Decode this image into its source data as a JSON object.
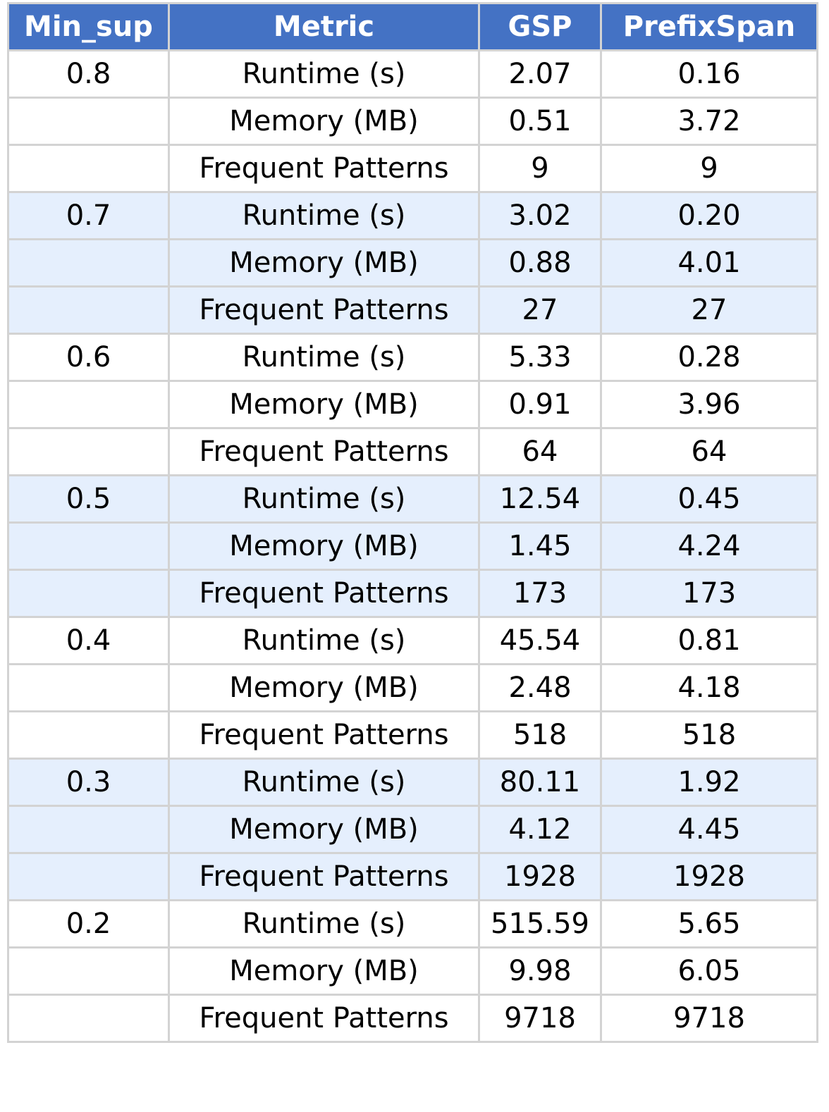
{
  "chart_data": {
    "type": "table",
    "columns": [
      "Min_sup",
      "Metric",
      "GSP",
      "PrefixSpan"
    ],
    "metrics": [
      "Runtime (s)",
      "Memory (MB)",
      "Frequent Patterns"
    ],
    "groups": [
      {
        "min_sup": "0.8",
        "rows": [
          {
            "metric": "Runtime (s)",
            "gsp": "2.07",
            "prefixspan": "0.16"
          },
          {
            "metric": "Memory (MB)",
            "gsp": "0.51",
            "prefixspan": "3.72"
          },
          {
            "metric": "Frequent Patterns",
            "gsp": "9",
            "prefixspan": "9"
          }
        ]
      },
      {
        "min_sup": "0.7",
        "rows": [
          {
            "metric": "Runtime (s)",
            "gsp": "3.02",
            "prefixspan": "0.20"
          },
          {
            "metric": "Memory (MB)",
            "gsp": "0.88",
            "prefixspan": "4.01"
          },
          {
            "metric": "Frequent Patterns",
            "gsp": "27",
            "prefixspan": "27"
          }
        ]
      },
      {
        "min_sup": "0.6",
        "rows": [
          {
            "metric": "Runtime (s)",
            "gsp": "5.33",
            "prefixspan": "0.28"
          },
          {
            "metric": "Memory (MB)",
            "gsp": "0.91",
            "prefixspan": "3.96"
          },
          {
            "metric": "Frequent Patterns",
            "gsp": "64",
            "prefixspan": "64"
          }
        ]
      },
      {
        "min_sup": "0.5",
        "rows": [
          {
            "metric": "Runtime (s)",
            "gsp": "12.54",
            "prefixspan": "0.45"
          },
          {
            "metric": "Memory (MB)",
            "gsp": "1.45",
            "prefixspan": "4.24"
          },
          {
            "metric": "Frequent Patterns",
            "gsp": "173",
            "prefixspan": "173"
          }
        ]
      },
      {
        "min_sup": "0.4",
        "rows": [
          {
            "metric": "Runtime (s)",
            "gsp": "45.54",
            "prefixspan": "0.81"
          },
          {
            "metric": "Memory (MB)",
            "gsp": "2.48",
            "prefixspan": "4.18"
          },
          {
            "metric": "Frequent Patterns",
            "gsp": "518",
            "prefixspan": "518"
          }
        ]
      },
      {
        "min_sup": "0.3",
        "rows": [
          {
            "metric": "Runtime (s)",
            "gsp": "80.11",
            "prefixspan": "1.92"
          },
          {
            "metric": "Memory (MB)",
            "gsp": "4.12",
            "prefixspan": "4.45"
          },
          {
            "metric": "Frequent Patterns",
            "gsp": "1928",
            "prefixspan": "1928"
          }
        ]
      },
      {
        "min_sup": "0.2",
        "rows": [
          {
            "metric": "Runtime (s)",
            "gsp": "515.59",
            "prefixspan": "5.65"
          },
          {
            "metric": "Memory (MB)",
            "gsp": "9.98",
            "prefixspan": "6.05"
          },
          {
            "metric": "Frequent Patterns",
            "gsp": "9718",
            "prefixspan": "9718"
          }
        ]
      }
    ]
  },
  "colors": {
    "header_bg": "#4472c4",
    "header_text": "#ffffff",
    "band_bg": "#e5effd",
    "row_bg": "#ffffff",
    "grid": "#d3d3d3"
  }
}
